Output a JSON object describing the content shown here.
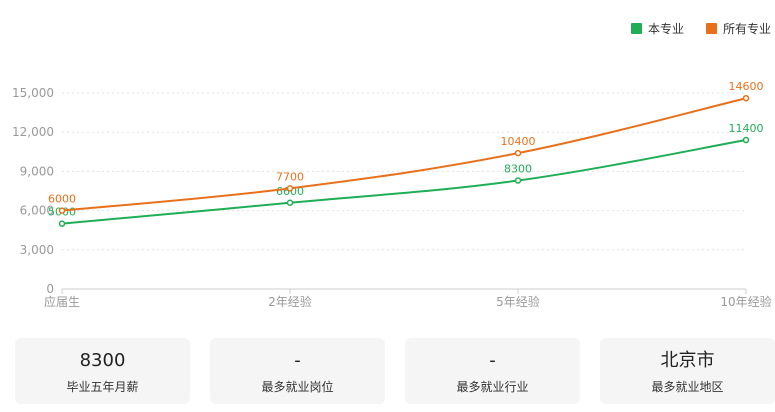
{
  "legend": {
    "items": [
      {
        "label": "本专业",
        "color": "#1fae55"
      },
      {
        "label": "所有专业",
        "color": "#e8701a"
      }
    ]
  },
  "chart_data": {
    "type": "line",
    "categories": [
      "应届生",
      "2年经验",
      "5年经验",
      "10年经验"
    ],
    "series": [
      {
        "name": "本专业",
        "values": [
          5000,
          6600,
          8300,
          11400
        ],
        "color": "#1fae55",
        "labels": [
          "5000",
          "6600",
          "8300",
          "11400"
        ]
      },
      {
        "name": "所有专业",
        "values": [
          6000,
          7700,
          10400,
          14600
        ],
        "color": "#e8701a",
        "labels": [
          "6000",
          "7700",
          "10400",
          "14600"
        ]
      }
    ],
    "ylim": [
      0,
      15000
    ],
    "yticks": [
      0,
      3000,
      6000,
      9000,
      12000,
      15000
    ],
    "ytick_labels": [
      "0",
      "3,000",
      "6,000",
      "9,000",
      "12,000",
      "15,000"
    ],
    "grid": true,
    "legend_position": "top-right"
  },
  "cards": [
    {
      "value": "8300",
      "label": "毕业五年月薪"
    },
    {
      "value": "-",
      "label": "最多就业岗位"
    },
    {
      "value": "-",
      "label": "最多就业行业"
    },
    {
      "value": "北京市",
      "label": "最多就业地区"
    }
  ]
}
